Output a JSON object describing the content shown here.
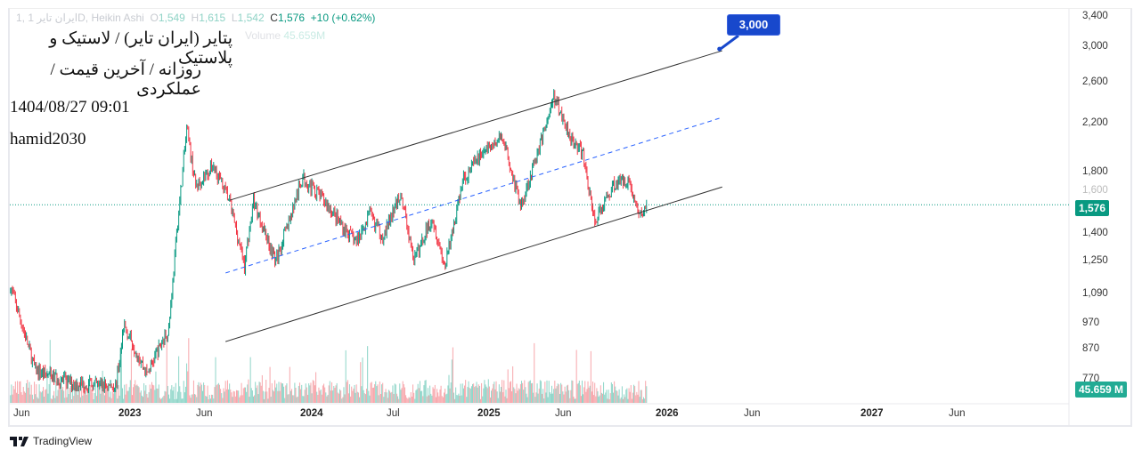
{
  "legend": {
    "symbol": "1, ایران تایر",
    "interval": "1D, Heikin Ashi",
    "o_label": "O",
    "o": "1,549",
    "h_label": "H",
    "h": "1,615",
    "l_label": "L",
    "l": "1,542",
    "c_label": "C",
    "c": "1,576",
    "change": "+10 (+0.62%)",
    "volume_label": "Volume",
    "volume": "45.659M"
  },
  "overlay": {
    "line1": "پتایر (ایران تایر) / لاستیک و پلاستیک",
    "line2": "روزانه / آخرین قیمت / عملکردی",
    "line3": "1404/08/27 09:01",
    "line4": "hamid2030"
  },
  "price_axis": {
    "scale": "log",
    "ticks": [
      "3,400",
      "3,000",
      "2,600",
      "2,200",
      "1,800",
      "1,400",
      "1,250",
      "1,090",
      "970",
      "870",
      "770"
    ],
    "hidden_tick": "1,600",
    "last_price": "1,576",
    "last_volume": "45.659 M"
  },
  "time_axis": {
    "ticks": [
      {
        "label": "Jun",
        "bold": false
      },
      {
        "label": "2023",
        "bold": true
      },
      {
        "label": "Jun",
        "bold": false
      },
      {
        "label": "2024",
        "bold": true
      },
      {
        "label": "Jul",
        "bold": false
      },
      {
        "label": "2025",
        "bold": true
      },
      {
        "label": "Jun",
        "bold": false
      },
      {
        "label": "2026",
        "bold": true
      },
      {
        "label": "Jun",
        "bold": false
      },
      {
        "label": "2027",
        "bold": true
      },
      {
        "label": "Jun",
        "bold": false
      }
    ]
  },
  "chart_data": {
    "type": "candlestick",
    "style": "Heikin Ashi",
    "y_scale": "log",
    "ylim": [
      740,
      3500
    ],
    "price_path": [
      [
        "2022-05-04",
        1130
      ],
      [
        "2022-06-23",
        800
      ],
      [
        "2022-09-02",
        760
      ],
      [
        "2022-12-01",
        750
      ],
      [
        "2022-12-19",
        960
      ],
      [
        "2023-02-02",
        790
      ],
      [
        "2023-03-18",
        950
      ],
      [
        "2023-04-05",
        1470
      ],
      [
        "2023-04-23",
        2150
      ],
      [
        "2023-05-11",
        1700
      ],
      [
        "2023-06-16",
        1850
      ],
      [
        "2023-07-18",
        1600
      ],
      [
        "2023-08-17",
        1230
      ],
      [
        "2023-09-04",
        1600
      ],
      [
        "2023-10-19",
        1250
      ],
      [
        "2023-12-12",
        1760
      ],
      [
        "2024-01-26",
        1600
      ],
      [
        "2024-03-03",
        1440
      ],
      [
        "2024-03-31",
        1350
      ],
      [
        "2024-04-27",
        1520
      ],
      [
        "2024-05-24",
        1380
      ],
      [
        "2024-06-30",
        1650
      ],
      [
        "2024-07-27",
        1250
      ],
      [
        "2024-09-02",
        1500
      ],
      [
        "2024-09-29",
        1220
      ],
      [
        "2024-11-04",
        1740
      ],
      [
        "2024-12-11",
        1940
      ],
      [
        "2025-01-26",
        2080
      ],
      [
        "2025-03-03",
        1560
      ],
      [
        "2025-04-08",
        1970
      ],
      [
        "2025-05-10",
        2450
      ],
      [
        "2025-06-12",
        2100
      ],
      [
        "2025-07-09",
        1930
      ],
      [
        "2025-08-02",
        1470
      ],
      [
        "2025-09-11",
        1720
      ],
      [
        "2025-10-09",
        1750
      ],
      [
        "2025-11-02",
        1500
      ],
      [
        "2025-11-18",
        1576
      ]
    ],
    "trendlines": [
      {
        "kind": "channel-upper",
        "from": [
          "2023-07-18",
          1605
        ],
        "to": [
          "2026-04-20",
          2960
        ],
        "color": "#333333"
      },
      {
        "kind": "channel-lower",
        "from": [
          "2023-07-10",
          900
        ],
        "to": [
          "2026-04-20",
          1695
        ],
        "color": "#333333"
      },
      {
        "kind": "channel-mid",
        "from": [
          "2023-07-10",
          1192
        ],
        "to": [
          "2026-04-20",
          2253
        ],
        "color": "#2962ff",
        "dashed": true
      }
    ],
    "target_label": "3,000",
    "last_price": 1576,
    "colors": {
      "up": "#089981",
      "down": "#f23645",
      "vol_up": "#8ed5c8",
      "vol_down": "#f7a6ab",
      "target": "#1848cc"
    }
  }
}
